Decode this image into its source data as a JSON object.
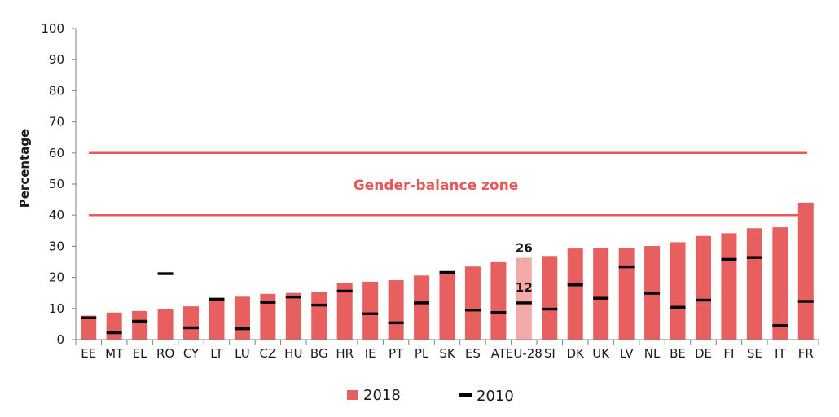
{
  "chart_data": {
    "type": "bar",
    "ylabel": "Percentage",
    "ylim": [
      0,
      100
    ],
    "yticks": [
      0,
      10,
      20,
      30,
      40,
      50,
      60,
      70,
      80,
      90,
      100
    ],
    "categories": [
      "EE",
      "MT",
      "EL",
      "RO",
      "CY",
      "LT",
      "LU",
      "CZ",
      "HU",
      "BG",
      "HR",
      "IE",
      "PT",
      "PL",
      "SK",
      "ES",
      "AT",
      "EU-28",
      "SI",
      "DK",
      "UK",
      "LV",
      "NL",
      "BE",
      "DE",
      "FI",
      "SE",
      "IT",
      "FR"
    ],
    "series": [
      {
        "name": "2018",
        "type": "bar",
        "values": [
          7.7,
          8.7,
          9.2,
          9.7,
          10.7,
          13.1,
          13.8,
          14.7,
          15.0,
          15.3,
          18.2,
          18.6,
          19.1,
          20.6,
          22.0,
          23.5,
          24.9,
          26.3,
          26.9,
          29.3,
          29.4,
          29.5,
          30.1,
          31.3,
          33.3,
          34.2,
          35.8,
          36.1,
          44.0
        ]
      },
      {
        "name": "2010",
        "type": "marker",
        "values": [
          7.0,
          2.2,
          5.9,
          21.2,
          3.8,
          13.0,
          3.5,
          12.0,
          13.7,
          11.1,
          15.6,
          8.3,
          5.4,
          11.8,
          21.6,
          9.5,
          8.7,
          11.8,
          9.8,
          17.6,
          13.3,
          23.4,
          14.9,
          10.4,
          12.7,
          25.8,
          26.4,
          4.5,
          12.3
        ]
      }
    ],
    "highlight_category": "EU-28",
    "data_labels": [
      {
        "category": "EU-28",
        "series": "2018",
        "text": "26"
      },
      {
        "category": "EU-28",
        "series": "2010",
        "text": "12"
      }
    ],
    "reference_lines": [
      60,
      40
    ],
    "zone_label": "Gender-balance zone",
    "legend": {
      "position": "bottom",
      "entries": [
        "2018",
        "2010"
      ]
    },
    "colors": {
      "bar": "#e75f5f",
      "bar_highlight": "#f2a9a9",
      "marker": "#000000",
      "zone": "#e35a5a",
      "axis": "#7f7f7f"
    },
    "grid": false
  }
}
